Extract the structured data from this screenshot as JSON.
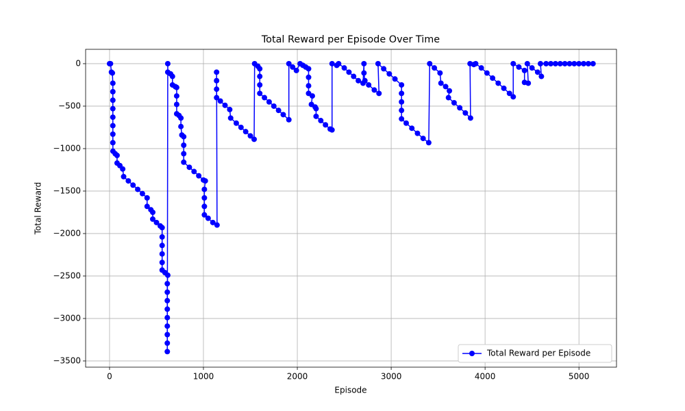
{
  "chart_data": {
    "type": "line",
    "title": "Total Reward per Episode Over Time",
    "x_label": "Episode",
    "y_label": "Total Reward",
    "xlim": [
      -255,
      5400
    ],
    "ylim": [
      -3573,
      169
    ],
    "xticks": [
      0,
      1000,
      2000,
      3000,
      4000,
      5000
    ],
    "yticks": [
      0,
      {
        "value": -500,
        "label": "−500"
      },
      {
        "value": -1000,
        "label": "−1000"
      },
      {
        "value": -1500,
        "label": "−1500"
      },
      {
        "value": -2000,
        "label": "−2000"
      },
      {
        "value": -2500,
        "label": "−2500"
      },
      {
        "value": -3000,
        "label": "−3000"
      },
      {
        "value": -3500,
        "label": "−3500"
      }
    ],
    "grid": true,
    "legend": "lower right",
    "x": [
      0,
      10,
      20,
      30,
      35,
      35,
      35,
      35,
      35,
      35,
      35,
      35,
      36,
      60,
      80,
      80,
      110,
      140,
      150,
      200,
      250,
      300,
      350,
      400,
      400,
      440,
      460,
      460,
      500,
      540,
      560,
      560,
      560,
      560,
      560,
      560,
      590,
      620,
      615,
      615,
      615,
      615,
      615,
      615,
      615,
      615,
      615,
      620,
      620,
      650,
      670,
      670,
      700,
      715,
      715,
      715,
      715,
      740,
      760,
      760,
      770,
      790,
      790,
      790,
      790,
      850,
      900,
      950,
      1000,
      1020,
      1010,
      1010,
      1010,
      1010,
      1050,
      1100,
      1145,
      1140,
      1140,
      1140,
      1140,
      1180,
      1230,
      1280,
      1290,
      1350,
      1400,
      1450,
      1500,
      1540,
      1545,
      1580,
      1600,
      1600,
      1600,
      1600,
      1650,
      1700,
      1750,
      1800,
      1850,
      1910,
      1910,
      1950,
      1990,
      2030,
      2060,
      2090,
      2120,
      2120,
      2120,
      2120,
      2160,
      2150,
      2190,
      2200,
      2200,
      2250,
      2300,
      2350,
      2370,
      2370,
      2420,
      2440,
      2500,
      2550,
      2600,
      2650,
      2700,
      2710,
      2710,
      2720,
      2760,
      2820,
      2870,
      2860,
      2920,
      2980,
      3040,
      3110,
      3110,
      3110,
      3110,
      3110,
      3160,
      3220,
      3280,
      3340,
      3400,
      3410,
      3460,
      3520,
      3530,
      3580,
      3620,
      3610,
      3670,
      3730,
      3790,
      3845,
      3840,
      3880,
      3900,
      3960,
      4020,
      4080,
      4140,
      4200,
      4260,
      4300,
      4300,
      4360,
      4420,
      4420,
      4460,
      4450,
      4500,
      4560,
      4600,
      4590,
      4650,
      4700,
      4750,
      4800,
      4850,
      4900,
      4950,
      5000,
      5050,
      5100,
      5150
    ],
    "series": [
      {
        "name": "Total Reward per Episode",
        "color": "#0000ff",
        "values": [
          0,
          0,
          -100,
          -110,
          -230,
          -330,
          -430,
          -530,
          -630,
          -730,
          -830,
          -930,
          -1030,
          -1060,
          -1080,
          -1170,
          -1200,
          -1240,
          -1330,
          -1380,
          -1430,
          -1480,
          -1530,
          -1580,
          -1680,
          -1720,
          -1750,
          -1830,
          -1870,
          -1910,
          -1930,
          -2040,
          -2140,
          -2240,
          -2340,
          -2430,
          -2460,
          -2490,
          -2590,
          -2690,
          -2790,
          -2890,
          -2990,
          -3090,
          -3190,
          -3290,
          -3390,
          0,
          -100,
          -120,
          -150,
          -250,
          -270,
          -280,
          -380,
          -480,
          -590,
          -610,
          -640,
          -740,
          -840,
          -860,
          -960,
          -1060,
          -1160,
          -1220,
          -1270,
          -1320,
          -1370,
          -1380,
          -1480,
          -1580,
          -1680,
          -1780,
          -1820,
          -1870,
          -1900,
          -100,
          -200,
          -300,
          -400,
          -440,
          -490,
          -540,
          -640,
          -700,
          -750,
          -800,
          -850,
          -890,
          0,
          -30,
          -60,
          -150,
          -250,
          -350,
          -400,
          -450,
          -500,
          -550,
          -600,
          -660,
          0,
          -40,
          -80,
          0,
          -20,
          -40,
          -60,
          -160,
          -260,
          -350,
          -380,
          -480,
          -510,
          -530,
          -620,
          -670,
          -720,
          -770,
          -780,
          0,
          -20,
          0,
          -50,
          -100,
          -150,
          -200,
          -230,
          0,
          -110,
          -200,
          -250,
          -310,
          -350,
          0,
          -60,
          -120,
          -180,
          -250,
          -350,
          -450,
          -550,
          -650,
          -700,
          -760,
          -820,
          -880,
          -930,
          0,
          -50,
          -110,
          -230,
          -270,
          -320,
          -400,
          -460,
          -520,
          -580,
          -640,
          0,
          -10,
          0,
          -50,
          -110,
          -170,
          -230,
          -290,
          -350,
          -390,
          0,
          -40,
          -80,
          -220,
          -230,
          0,
          -50,
          -100,
          -150,
          0,
          0,
          0,
          0,
          0,
          0,
          0,
          0,
          0,
          0,
          0,
          0
        ]
      }
    ]
  }
}
